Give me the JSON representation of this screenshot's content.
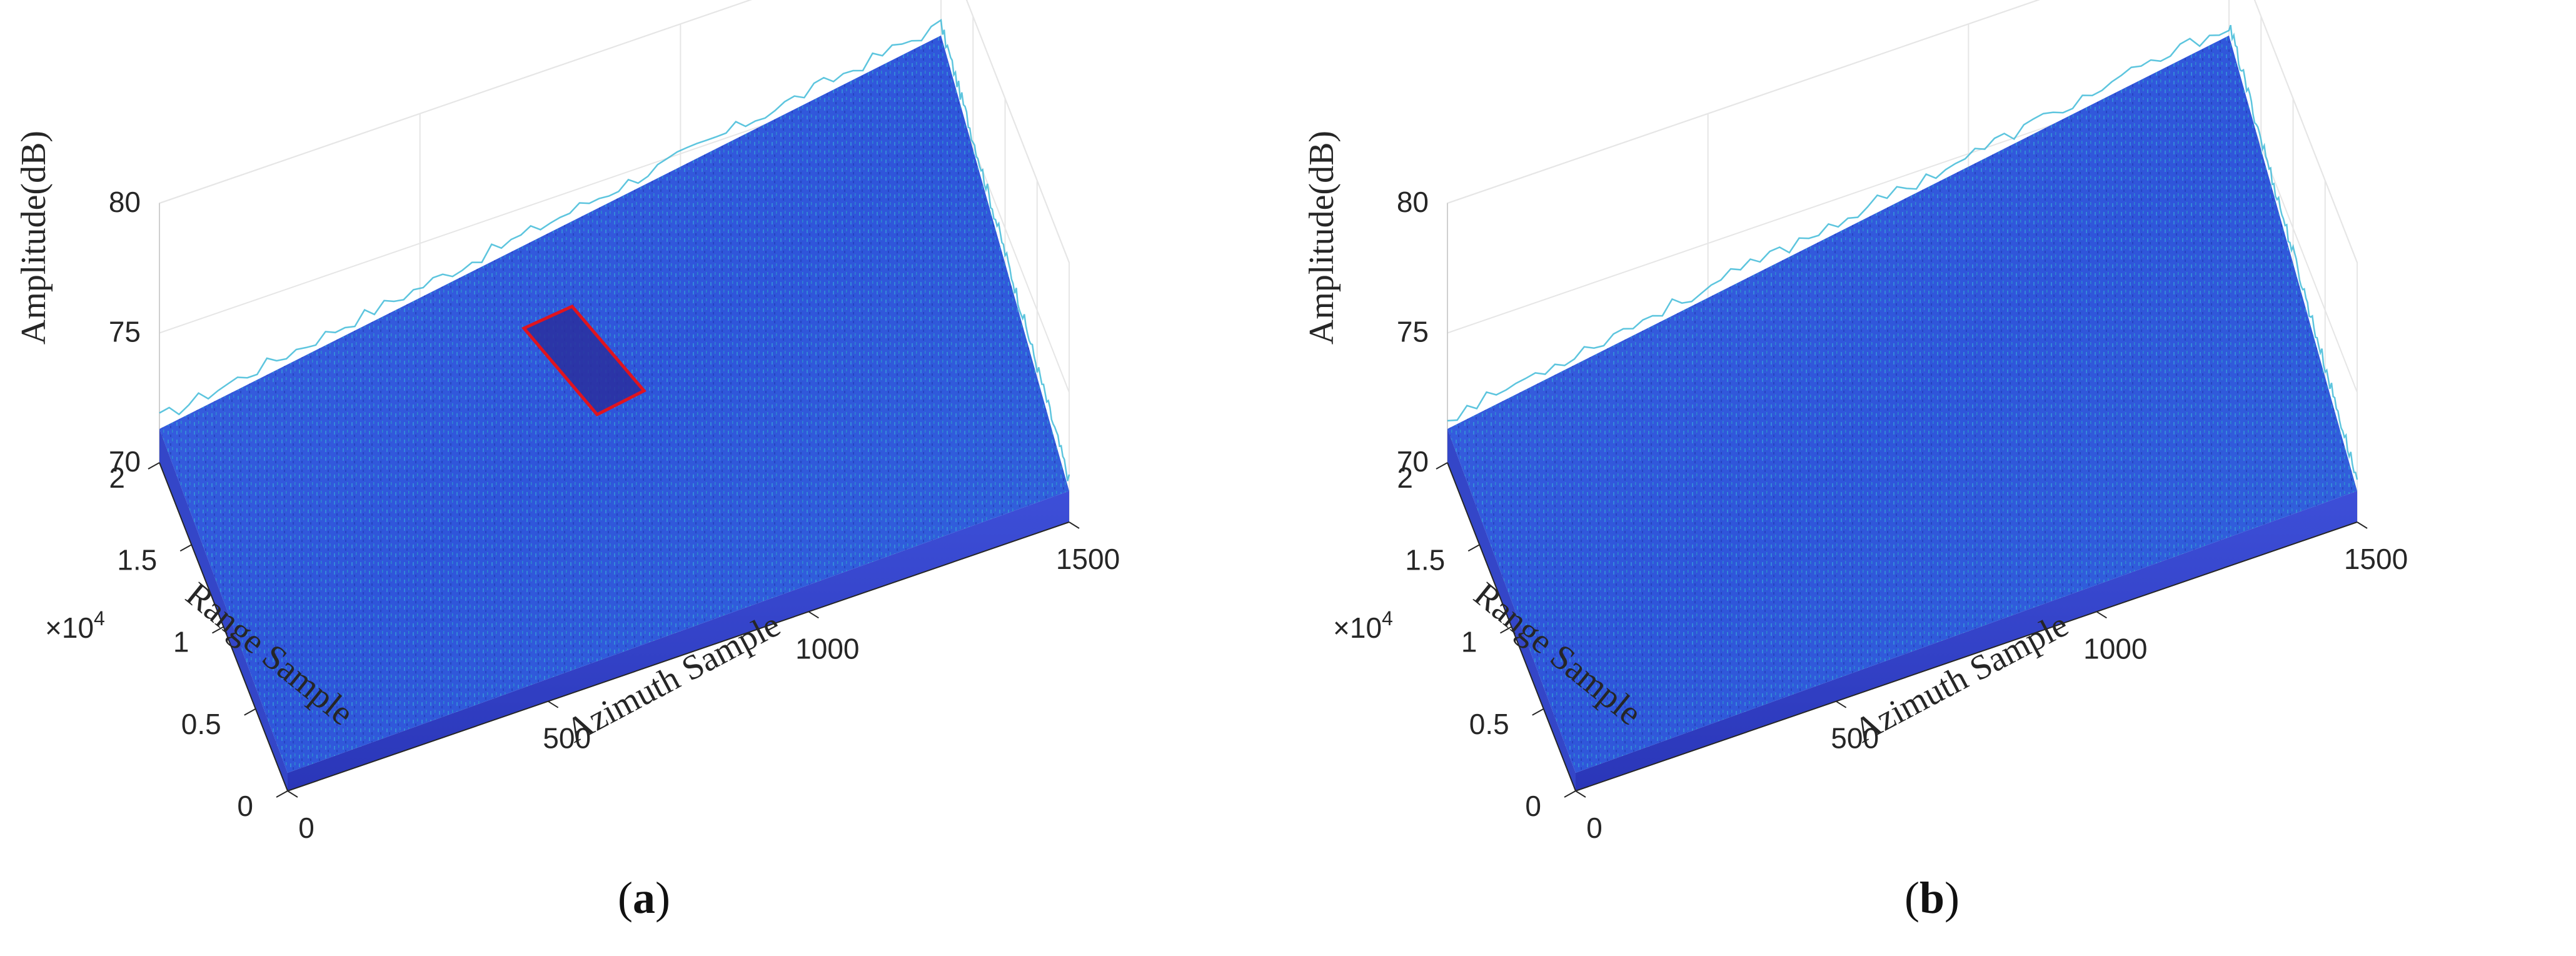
{
  "chart_data": [
    {
      "type": "surface3d",
      "panel_label": "a",
      "zlabel": "Amplitude(dB)",
      "xlabel": "Azimuth Sample",
      "ylabel": "Range Sample",
      "z_ticks": [
        "70",
        "75",
        "80"
      ],
      "x_ticks": [
        "0",
        "500",
        "1000",
        "1500"
      ],
      "y_ticks": [
        "0",
        "0.5",
        "1",
        "1.5",
        "2"
      ],
      "y_exponent_base": "×10",
      "y_exponent_power": "4",
      "zlim": [
        70,
        80
      ],
      "xlim": [
        0,
        1500
      ],
      "ylim": [
        0,
        20000
      ],
      "colormap": "parula",
      "surface_color": "#2f4fd6",
      "grid": true,
      "annotation": {
        "shape": "rectangle",
        "color": "#e0141e",
        "note": "highlighted low-amplitude region"
      }
    },
    {
      "type": "surface3d",
      "panel_label": "b",
      "zlabel": "Amplitude(dB)",
      "xlabel": "Azimuth Sample",
      "ylabel": "Range Sample",
      "z_ticks": [
        "70",
        "75",
        "80"
      ],
      "x_ticks": [
        "0",
        "500",
        "1000",
        "1500"
      ],
      "y_ticks": [
        "0",
        "0.5",
        "1",
        "1.5",
        "2"
      ],
      "y_exponent_base": "×10",
      "y_exponent_power": "4",
      "zlim": [
        70,
        80
      ],
      "xlim": [
        0,
        1500
      ],
      "ylim": [
        0,
        20000
      ],
      "colormap": "parula",
      "surface_color": "#2f4fd6",
      "grid": true
    }
  ]
}
